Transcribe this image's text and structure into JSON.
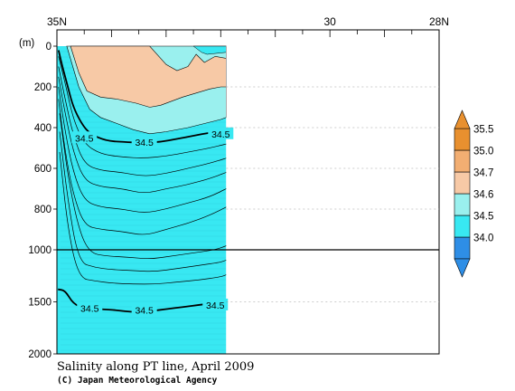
{
  "chart_data": {
    "type": "heatmap",
    "title": "Salinity along PT line, April 2009",
    "credit": "(C) Japan Meteorological Agency",
    "ylabel": "(m)",
    "x_ticks": [
      {
        "value": 35,
        "label": "35N"
      },
      {
        "value": 30,
        "label": "30"
      },
      {
        "value": 28,
        "label": "28N"
      }
    ],
    "x_range": [
      35,
      28
    ],
    "data_extent_lat": [
      35,
      31.9
    ],
    "y_ticks": [
      0,
      200,
      400,
      600,
      800,
      1000,
      1500,
      2000
    ],
    "y_range": [
      0,
      2000
    ],
    "depth_scale_break": 1000,
    "colorbar": {
      "levels": [
        "34.0",
        "34.5",
        "34.6",
        "34.7",
        "35.0",
        "35.5"
      ],
      "colors": [
        "#2e8ee6",
        "#38e8f2",
        "#9af0ee",
        "#f7c9a6",
        "#f2ae72",
        "#e8902f"
      ],
      "extend": "both"
    },
    "contour_labels": [
      {
        "lat": 34.5,
        "depth": 450,
        "text": "34.5"
      },
      {
        "lat": 33.4,
        "depth": 470,
        "text": "34.5"
      },
      {
        "lat": 32.0,
        "depth": 430,
        "text": "34.5"
      },
      {
        "lat": 34.4,
        "depth": 1560,
        "text": "34.5"
      },
      {
        "lat": 33.4,
        "depth": 1580,
        "text": "34.5"
      },
      {
        "lat": 32.1,
        "depth": 1530,
        "text": "34.5"
      }
    ],
    "isoline_34_5": {
      "upper": {
        "lat": [
          34.97,
          34.9,
          34.8,
          34.7,
          34.55,
          34.4,
          34.1,
          33.8,
          33.4,
          33.1,
          32.8,
          32.5,
          32.2,
          31.9
        ],
        "depth": [
          20,
          100,
          200,
          300,
          380,
          430,
          465,
          470,
          475,
          470,
          455,
          440,
          425,
          415
        ]
      },
      "lower": {
        "lat": [
          34.98,
          34.85,
          34.7,
          34.5,
          34.2,
          33.9,
          33.6,
          33.3,
          33.0,
          32.7,
          32.4,
          32.1,
          31.9
        ],
        "depth": [
          1380,
          1390,
          1520,
          1560,
          1570,
          1580,
          1600,
          1590,
          1570,
          1550,
          1530,
          1510,
          1480
        ]
      }
    },
    "mid_isolines": [
      {
        "lat": [
          34.97,
          34.85,
          34.7,
          34.5,
          34.2,
          33.8,
          33.4,
          33.0,
          32.6,
          32.2,
          31.9
        ],
        "depth": [
          50,
          180,
          360,
          480,
          530,
          545,
          550,
          540,
          520,
          500,
          480
        ]
      },
      {
        "lat": [
          34.97,
          34.85,
          34.7,
          34.5,
          34.2,
          33.8,
          33.4,
          33.0,
          32.6,
          32.2,
          31.9
        ],
        "depth": [
          100,
          260,
          440,
          580,
          610,
          620,
          640,
          625,
          600,
          575,
          550
        ]
      },
      {
        "lat": [
          34.97,
          34.85,
          34.7,
          34.5,
          34.2,
          33.8,
          33.4,
          33.0,
          32.6,
          32.2,
          31.9
        ],
        "depth": [
          150,
          330,
          520,
          660,
          690,
          700,
          725,
          700,
          680,
          650,
          620
        ]
      },
      {
        "lat": [
          34.97,
          34.85,
          34.7,
          34.5,
          34.2,
          33.8,
          33.4,
          33.0,
          32.6,
          32.2,
          31.9
        ],
        "depth": [
          200,
          420,
          620,
          760,
          790,
          800,
          820,
          800,
          770,
          740,
          700
        ]
      },
      {
        "lat": [
          34.97,
          34.85,
          34.7,
          34.5,
          34.2,
          33.8,
          33.4,
          33.0,
          32.6,
          32.2,
          31.9
        ],
        "depth": [
          260,
          520,
          730,
          880,
          900,
          910,
          930,
          900,
          870,
          830,
          790
        ]
      },
      {
        "lat": [
          34.95,
          34.8,
          34.6,
          34.4,
          34.1,
          33.7,
          33.3,
          32.9,
          32.5,
          32.1,
          31.9
        ],
        "depth": [
          330,
          640,
          900,
          1030,
          1060,
          1070,
          1090,
          1060,
          1030,
          1000,
          980
        ]
      },
      {
        "lat": [
          34.95,
          34.8,
          34.6,
          34.3,
          34.0,
          33.6,
          33.2,
          32.8,
          32.4,
          32.0,
          31.9
        ],
        "depth": [
          420,
          760,
          1120,
          1170,
          1190,
          1200,
          1210,
          1180,
          1150,
          1120,
          1100
        ]
      },
      {
        "lat": [
          34.95,
          34.8,
          34.6,
          34.3,
          34.0,
          33.6,
          33.2,
          32.8,
          32.4,
          32.0,
          31.9
        ],
        "depth": [
          520,
          900,
          1270,
          1300,
          1320,
          1330,
          1330,
          1310,
          1290,
          1260,
          1240
        ]
      }
    ],
    "high_salinity_region": {
      "outer": {
        "lat": [
          34.82,
          34.6,
          34.4,
          34.2,
          33.9,
          33.6,
          33.3,
          33.0,
          32.6,
          32.3,
          32.0,
          31.9,
          31.9
        ],
        "depth": [
          0,
          200,
          310,
          350,
          380,
          410,
          430,
          420,
          400,
          380,
          360,
          350,
          0
        ]
      },
      "inner": {
        "lat": [
          34.75,
          34.6,
          34.45,
          34.2,
          33.9,
          33.55,
          33.3,
          33.1,
          32.9,
          32.7,
          32.45,
          32.2,
          32.0,
          31.9,
          31.9,
          32.1,
          32.3,
          32.45,
          32.6,
          32.8,
          33.0,
          33.3
        ],
        "depth": [
          0,
          130,
          220,
          250,
          260,
          280,
          300,
          290,
          270,
          250,
          230,
          210,
          200,
          200,
          60,
          50,
          80,
          40,
          100,
          120,
          90,
          0
        ]
      }
    },
    "fresh_notch": {
      "lat": [
        31.9,
        31.9,
        32.25,
        32.35,
        32.5,
        32.45
      ],
      "depth": [
        0,
        30,
        40,
        30,
        0,
        0
      ]
    }
  }
}
